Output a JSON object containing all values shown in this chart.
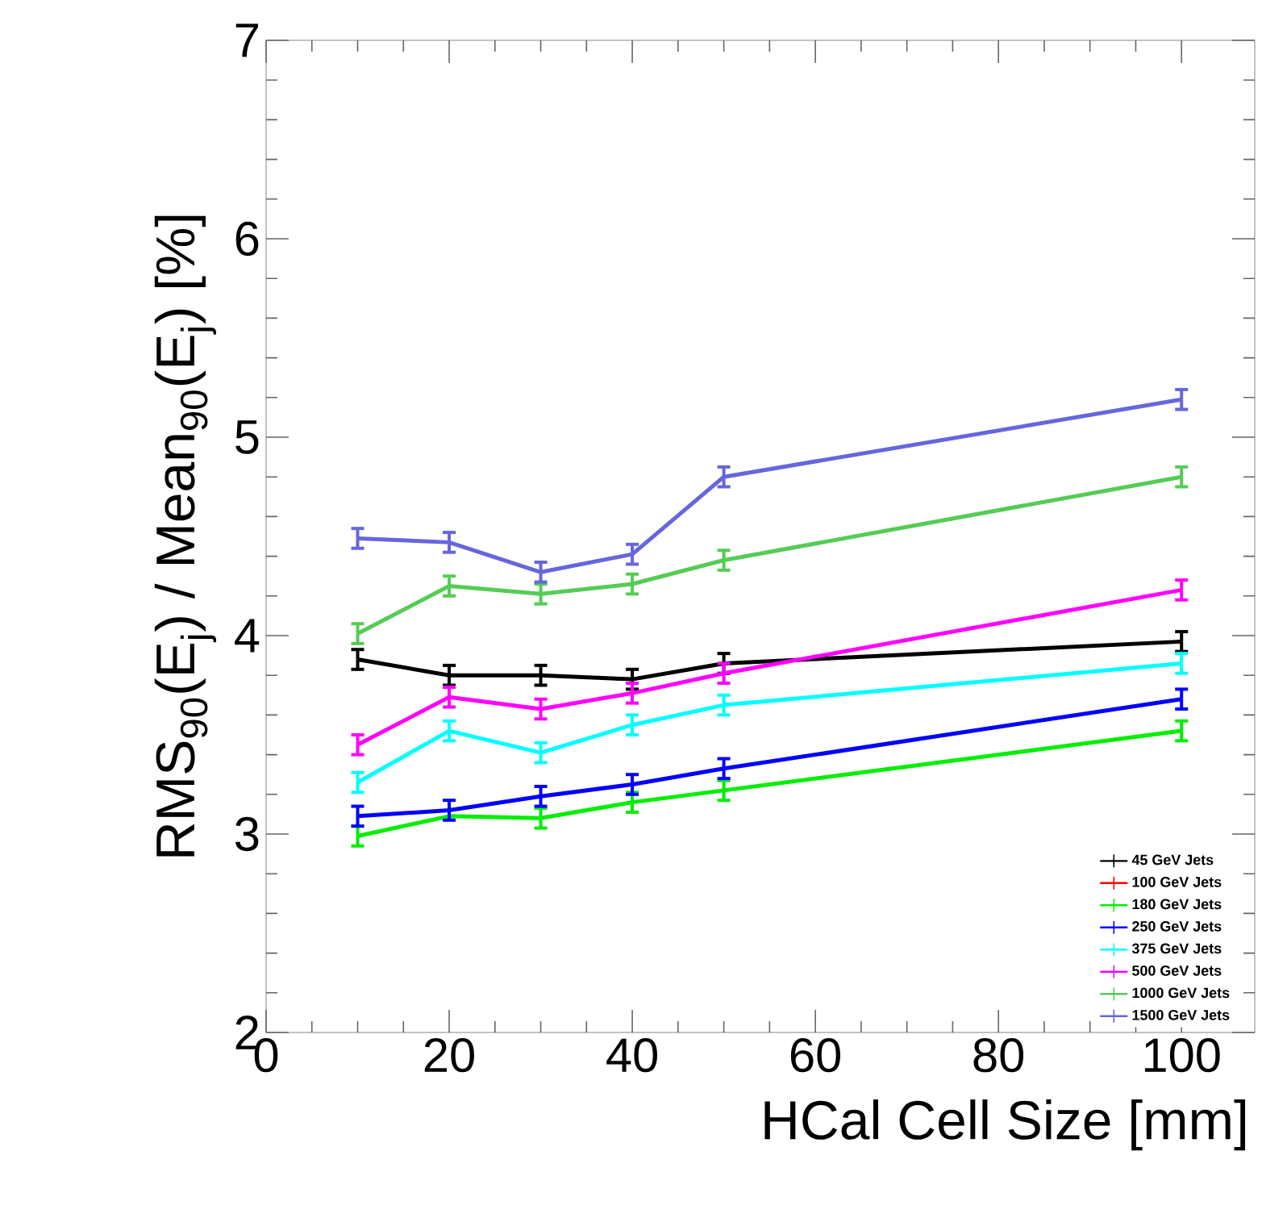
{
  "chart_data": {
    "type": "line",
    "xlabel": "HCal Cell Size [mm]",
    "ylabel": "RMS$_{90}$(E$_{j}$) / Mean$_{90}$(E$_{j}$) [%]",
    "x": [
      10,
      20,
      30,
      40,
      50,
      100
    ],
    "xlim": [
      0,
      108
    ],
    "xticks": [
      0,
      20,
      40,
      60,
      80,
      100
    ],
    "ylim": [
      2,
      7
    ],
    "yticks": [
      2,
      3,
      4,
      5,
      6,
      7
    ],
    "legend": "bottom right",
    "grid": false,
    "series": [
      {
        "name": "45 GeV Jets",
        "color": "#000000",
        "values": [
          3.88,
          3.8,
          3.8,
          3.78,
          3.86,
          3.97
        ],
        "errors": [
          0.05,
          0.05,
          0.05,
          0.05,
          0.05,
          0.05
        ]
      },
      {
        "name": "100 GeV Jets",
        "color": "#ff0000",
        "values": [
          null,
          null,
          null,
          null,
          null,
          null
        ]
      },
      {
        "name": "180 GeV Jets",
        "color": "#00ee00",
        "values": [
          2.99,
          3.09,
          3.08,
          3.16,
          3.22,
          3.52
        ],
        "errors": [
          0.05,
          null,
          0.05,
          0.05,
          0.05,
          0.05
        ]
      },
      {
        "name": "250 GeV Jets",
        "color": "#0000ff",
        "values": [
          3.09,
          3.12,
          3.19,
          3.25,
          3.33,
          3.68
        ],
        "errors": [
          0.05,
          0.05,
          0.05,
          0.05,
          0.05,
          0.05
        ]
      },
      {
        "name": "375 GeV Jets",
        "color": "#00ffff",
        "values": [
          3.26,
          3.52,
          3.41,
          3.55,
          3.65,
          3.86
        ],
        "errors": [
          0.05,
          0.05,
          0.05,
          0.05,
          0.05,
          0.05
        ]
      },
      {
        "name": "500 GeV Jets",
        "color": "#ff00ff",
        "values": [
          3.45,
          3.69,
          3.63,
          3.71,
          3.81,
          4.23
        ],
        "errors": [
          0.05,
          0.05,
          0.05,
          0.05,
          0.05,
          0.05
        ]
      },
      {
        "name": "1000 GeV Jets",
        "color": "#55cc55",
        "values": [
          4.01,
          4.25,
          4.21,
          4.26,
          4.38,
          4.8
        ],
        "errors": [
          0.05,
          0.05,
          0.05,
          0.05,
          0.05,
          0.05
        ]
      },
      {
        "name": "1500 GeV Jets",
        "color": "#6666dd",
        "values": [
          4.49,
          4.47,
          4.32,
          4.41,
          4.8,
          5.19
        ],
        "errors": [
          0.05,
          0.05,
          0.05,
          0.05,
          0.05,
          0.05
        ]
      }
    ]
  }
}
